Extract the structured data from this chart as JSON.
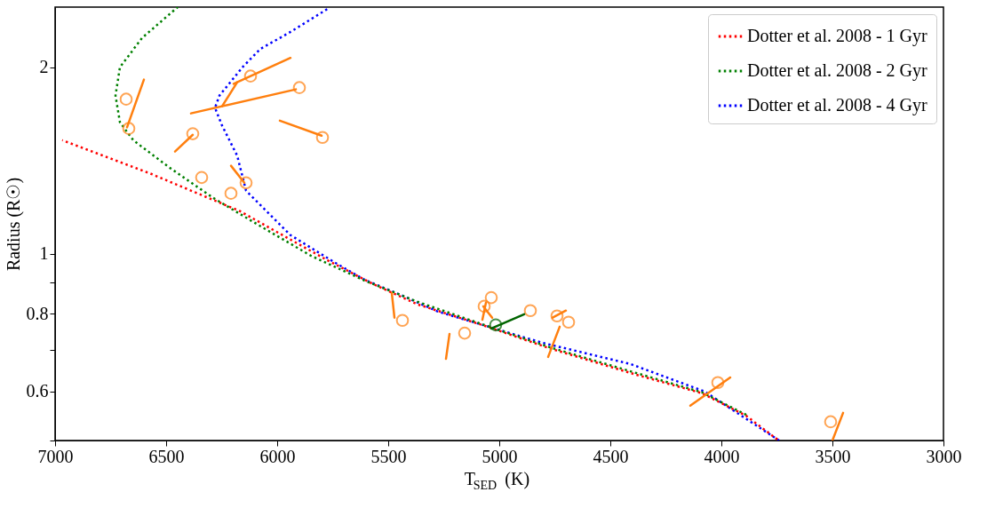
{
  "chart_data": {
    "type": "line",
    "xlabel": "T$_{SED}$ (K)",
    "ylabel": "Radius (R☉)",
    "log": "y",
    "grid": false,
    "legend": "top right",
    "xlim": [
      7000,
      3000
    ],
    "xticks": [
      7000,
      6500,
      6000,
      5500,
      5000,
      4500,
      4000,
      3500,
      3000
    ],
    "ylim": [
      0.5,
      2.5
    ],
    "yticks": [
      {
        "value": 0.5,
        "label": null
      },
      0.6,
      {
        "value": 0.7,
        "label": null
      },
      0.8,
      {
        "value": 0.9,
        "label": null
      },
      1,
      2
    ],
    "series": [
      {
        "name": "Dotter et al. 2008 - 1 Gyr",
        "line_style": "dotted",
        "color": "#ff0000",
        "x": [
          6968,
          6568,
          6168,
          5968,
          5768,
          5568,
          5368,
          5068,
          4768,
          4368,
          4088,
          3888,
          3748
        ],
        "values": [
          1.525,
          1.346,
          1.172,
          1.068,
          0.974,
          0.894,
          0.829,
          0.766,
          0.703,
          0.636,
          0.596,
          0.548,
          0.502
        ]
      },
      {
        "name": "Dotter et al. 2008 - 2 Gyr",
        "line_style": "dotted",
        "color": "#008000",
        "x": [
          6448,
          6608,
          6708,
          6728,
          6708,
          6648,
          6488,
          6288,
          6088,
          5848,
          5608,
          5368,
          5068,
          4768,
          4368,
          4088,
          3888
        ],
        "values": [
          2.5,
          2.23,
          2.0,
          1.8,
          1.63,
          1.525,
          1.38,
          1.231,
          1.115,
          0.993,
          0.906,
          0.837,
          0.768,
          0.706,
          0.64,
          0.598,
          0.55
        ]
      },
      {
        "name": "Dotter et al. 2008 - 4 Gyr",
        "line_style": "dotted",
        "color": "#0000ff",
        "x": [
          5768,
          5940,
          6076,
          6156,
          6260,
          6280,
          6248,
          6180,
          6140,
          6048,
          5940,
          5740,
          5608,
          5436,
          5276,
          5048,
          4808,
          4408,
          4076,
          3740
        ],
        "values": [
          2.49,
          2.28,
          2.14,
          2.0,
          1.8,
          1.72,
          1.61,
          1.44,
          1.264,
          1.172,
          1.072,
          0.968,
          0.909,
          0.856,
          0.807,
          0.763,
          0.719,
          0.664,
          0.6,
          0.5
        ]
      },
      {
        "type": "scatter",
        "marker": "circle",
        "color": "#ff7f0e",
        "x": [
          6680,
          6668,
          6380,
          6120,
          5900,
          5796,
          6340,
          6140,
          6208,
          5436,
          5156,
          5036,
          5068,
          4860,
          4740,
          4688,
          4016,
          3508
        ],
        "values": [
          1.776,
          1.593,
          1.562,
          1.935,
          1.854,
          1.541,
          1.328,
          1.302,
          1.252,
          0.781,
          0.745,
          0.85,
          0.823,
          0.81,
          0.794,
          0.776,
          0.62,
          0.536
        ]
      },
      {
        "line_style": "solid",
        "color": "#ff7f0e",
        "x": [
          6600,
          6676,
          null,
          6388,
          5916,
          null,
          6248,
          6180,
          null,
          5940,
          6196,
          null,
          5988,
          5800,
          null,
          6460,
          6380,
          null,
          6208,
          6148,
          null,
          5484,
          5472,
          null,
          5240,
          5224,
          null,
          5032,
          5072,
          null,
          5076,
          5060,
          null,
          4700,
          4760,
          null,
          4780,
          4728,
          null,
          4140,
          3960,
          null,
          3500,
          3452
        ],
        "values": [
          1.91,
          1.6,
          null,
          1.685,
          1.842,
          null,
          1.73,
          1.891,
          null,
          2.07,
          1.88,
          null,
          1.64,
          1.551,
          null,
          1.462,
          1.556,
          null,
          1.387,
          1.302,
          null,
          0.865,
          0.789,
          null,
          0.677,
          0.743,
          null,
          0.789,
          0.823,
          null,
          0.783,
          0.834,
          null,
          0.81,
          0.789,
          null,
          0.682,
          0.763,
          null,
          0.569,
          0.632,
          null,
          0.5,
          0.554
        ]
      },
      {
        "type": "scatter",
        "marker": "circle",
        "color": "#006400",
        "x": [
          5016
        ],
        "values": [
          0.768
        ]
      },
      {
        "line_style": "solid",
        "color": "#006400",
        "x": [
          4888,
          5036
        ],
        "values": [
          0.799,
          0.758
        ]
      }
    ]
  }
}
